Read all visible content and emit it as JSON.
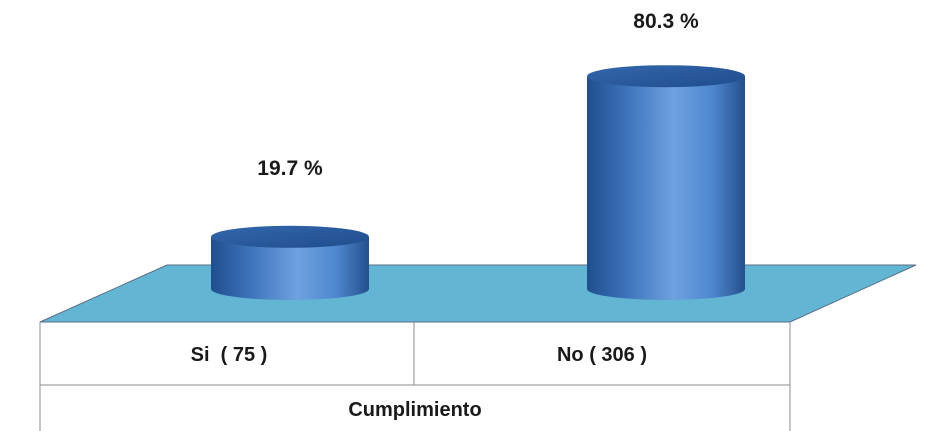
{
  "chart_data": {
    "type": "bar",
    "title": "",
    "xlabel": "Cumplimiento",
    "ylabel": "",
    "categories": [
      "Si  ( 75 )",
      "No ( 306 )"
    ],
    "values": [
      19.7,
      80.3
    ],
    "value_labels": [
      "19.7 %",
      "80.3 %"
    ],
    "ylim": [
      0,
      100
    ],
    "grid": false,
    "legend": "none",
    "style": "3d-cylinder"
  },
  "colors": {
    "floor": "#62b6d4",
    "floor_edge": "#5a6e86",
    "bar_dark": "#1f4f8e",
    "bar_mid": "#4d86cd",
    "bar_light": "#6ea2e0",
    "bar_top": "#2a5fa6",
    "table_line": "#8c8c8c"
  }
}
